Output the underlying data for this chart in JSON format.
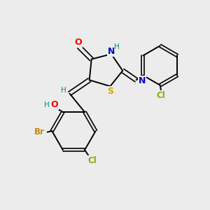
{
  "bg_color": "#ececec",
  "atom_colors": {
    "O": "#ff0000",
    "N": "#0000cc",
    "S": "#ccaa00",
    "H": "#008888",
    "Cl": "#88aa00",
    "Br": "#cc8800"
  }
}
